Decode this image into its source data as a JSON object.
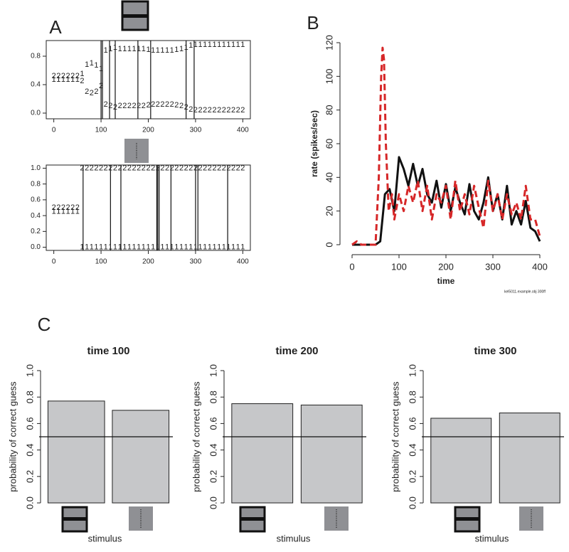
{
  "chart_data": [
    {
      "type": "scatter",
      "panel_label": "A",
      "x": [
        0,
        10,
        20,
        30,
        40,
        50,
        60,
        70,
        80,
        90,
        100,
        110,
        120,
        130,
        140,
        150,
        160,
        170,
        180,
        190,
        200,
        210,
        220,
        230,
        240,
        250,
        260,
        270,
        280,
        290,
        300,
        310,
        320,
        330,
        340,
        350,
        360,
        370,
        380,
        390,
        400
      ],
      "series": [
        {
          "name": "1",
          "values": [
            0.47,
            0.47,
            0.47,
            0.47,
            0.47,
            0.47,
            0.55,
            0.68,
            0.7,
            0.67,
            0.62,
            0.88,
            0.9,
            0.92,
            0.9,
            0.9,
            0.9,
            0.9,
            0.9,
            0.9,
            0.89,
            0.88,
            0.88,
            0.88,
            0.88,
            0.88,
            0.89,
            0.9,
            0.92,
            0.95,
            0.96,
            0.96,
            0.96,
            0.96,
            0.96,
            0.96,
            0.96,
            0.96,
            0.96,
            0.96,
            0.96
          ]
        },
        {
          "name": "2",
          "values": [
            0.52,
            0.52,
            0.52,
            0.52,
            0.52,
            0.52,
            0.45,
            0.3,
            0.28,
            0.3,
            0.38,
            0.12,
            0.1,
            0.08,
            0.1,
            0.1,
            0.1,
            0.1,
            0.1,
            0.1,
            0.11,
            0.12,
            0.12,
            0.12,
            0.12,
            0.12,
            0.11,
            0.1,
            0.08,
            0.05,
            0.04,
            0.04,
            0.04,
            0.04,
            0.04,
            0.04,
            0.04,
            0.04,
            0.04,
            0.04,
            0.04
          ]
        }
      ],
      "event_times": [
        100,
        103,
        118,
        130,
        178,
        205,
        280,
        297
      ],
      "xlim": [
        -16,
        416
      ],
      "ylim": [
        -0.08,
        1.02
      ],
      "xticks": [
        0,
        100,
        200,
        300,
        400
      ],
      "yticks": [
        {
          "value": 0,
          "label": "0.0"
        },
        {
          "value": 0.4,
          "label": "0.4"
        },
        {
          "value": 0.8,
          "label": "0.8"
        }
      ]
    },
    {
      "type": "scatter",
      "x": [
        0,
        10,
        20,
        30,
        40,
        50,
        60,
        70,
        80,
        90,
        100,
        110,
        120,
        130,
        140,
        150,
        160,
        170,
        180,
        190,
        200,
        210,
        220,
        230,
        240,
        250,
        260,
        270,
        280,
        290,
        300,
        310,
        320,
        330,
        340,
        350,
        360,
        370,
        380,
        390,
        400
      ],
      "series": [
        {
          "name": "1",
          "values": [
            0.45,
            0.45,
            0.45,
            0.45,
            0.45,
            0.45,
            0,
            0,
            0,
            0,
            0,
            0,
            0,
            0,
            0,
            0,
            0,
            0,
            0,
            0,
            0,
            0,
            0,
            0,
            0,
            0,
            0,
            0,
            0,
            0,
            0,
            0,
            0,
            0,
            0,
            0,
            0,
            0,
            0,
            0,
            0
          ]
        },
        {
          "name": "2",
          "values": [
            0.5,
            0.5,
            0.5,
            0.5,
            0.5,
            0.5,
            1,
            1,
            1,
            1,
            1,
            1,
            1,
            1,
            1,
            1,
            1,
            1,
            1,
            1,
            1,
            1,
            1,
            1,
            1,
            1,
            1,
            1,
            1,
            1,
            1,
            1,
            1,
            1,
            1,
            1,
            1,
            1,
            1,
            1,
            1
          ]
        }
      ],
      "event_times": [
        62,
        120,
        142,
        218,
        220,
        223,
        248,
        300,
        305,
        368
      ],
      "xlim": [
        -16,
        416
      ],
      "ylim": [
        -0.04,
        1.04
      ],
      "xticks": [
        0,
        100,
        200,
        300,
        400
      ],
      "yticks": [
        {
          "value": 0,
          "label": "0.0"
        },
        {
          "value": 0.2,
          "label": "0.2"
        },
        {
          "value": 0.4,
          "label": "0.4"
        },
        {
          "value": 0.6,
          "label": "0.6"
        },
        {
          "value": 0.8,
          "label": "0.8"
        },
        {
          "value": 1,
          "label": "1.0"
        }
      ]
    },
    {
      "type": "line",
      "panel_label": "B",
      "x_label": "time",
      "y_label": "rate (spikes/sec)",
      "note": "kel5011.example.obj 300ff",
      "series": [
        {
          "color": "#111111",
          "dash": false,
          "x": [
            0,
            10,
            20,
            30,
            40,
            50,
            60,
            70,
            80,
            90,
            100,
            110,
            120,
            130,
            140,
            150,
            160,
            170,
            180,
            190,
            200,
            210,
            220,
            230,
            240,
            250,
            260,
            270,
            280,
            290,
            300,
            310,
            320,
            330,
            340,
            350,
            360,
            370,
            380,
            390,
            400
          ],
          "values": [
            0,
            0,
            0,
            0,
            0,
            0,
            2,
            30,
            33,
            20,
            52,
            45,
            35,
            48,
            35,
            45,
            30,
            25,
            38,
            22,
            36,
            20,
            34,
            25,
            18,
            36,
            20,
            15,
            25,
            40,
            20,
            30,
            15,
            35,
            12,
            20,
            12,
            26,
            10,
            8,
            2
          ]
        },
        {
          "color": "#d62728",
          "dash": true,
          "x": [
            0,
            10,
            20,
            30,
            40,
            50,
            57,
            62,
            65,
            68,
            72,
            78,
            85,
            90,
            100,
            110,
            120,
            130,
            140,
            150,
            160,
            170,
            180,
            190,
            200,
            210,
            220,
            230,
            240,
            250,
            260,
            270,
            280,
            290,
            300,
            310,
            320,
            330,
            340,
            350,
            360,
            370,
            380,
            390,
            400
          ],
          "values": [
            0,
            2,
            0,
            0,
            0,
            0,
            40,
            100,
            117,
            110,
            60,
            20,
            30,
            15,
            30,
            20,
            35,
            25,
            38,
            20,
            35,
            15,
            30,
            25,
            35,
            15,
            38,
            20,
            30,
            18,
            35,
            22,
            10,
            38,
            20,
            30,
            15,
            30,
            18,
            25,
            15,
            35,
            15,
            15,
            5
          ]
        }
      ],
      "xlim": [
        0,
        400
      ],
      "ylim": [
        0,
        120
      ],
      "xticks": [
        0,
        100,
        200,
        300,
        400
      ],
      "yticks": [
        0,
        20,
        40,
        60,
        80,
        100,
        120
      ]
    },
    {
      "type": "bar",
      "panel_label": "C",
      "title": "time 100",
      "x_label": "stimulus",
      "y_label": "probability of correct guess",
      "categories": [
        null,
        null
      ],
      "values": [
        0.77,
        0.7
      ],
      "color": "#c6c7c9",
      "reference_line": 0.5,
      "ylim": [
        0,
        1
      ],
      "yticks": [
        {
          "value": 0,
          "label": "0.0"
        },
        {
          "value": 0.2,
          "label": "0.2"
        },
        {
          "value": 0.4,
          "label": "0.4"
        },
        {
          "value": 0.6,
          "label": "0.6"
        },
        {
          "value": 0.8,
          "label": "0.8"
        },
        {
          "value": 1,
          "label": "1.0"
        }
      ]
    },
    {
      "type": "bar",
      "title": "time 200",
      "x_label": "stimulus",
      "y_label": "probability of correct guess",
      "categories": [
        null,
        null
      ],
      "values": [
        0.75,
        0.74
      ],
      "color": "#c6c7c9",
      "reference_line": 0.5,
      "ylim": [
        0,
        1
      ],
      "yticks": [
        {
          "value": 0,
          "label": "0.0"
        },
        {
          "value": 0.2,
          "label": "0.2"
        },
        {
          "value": 0.4,
          "label": "0.4"
        },
        {
          "value": 0.6,
          "label": "0.6"
        },
        {
          "value": 0.8,
          "label": "0.8"
        },
        {
          "value": 1,
          "label": "1.0"
        }
      ]
    },
    {
      "type": "bar",
      "title": "time 300",
      "x_label": "stimulus",
      "y_label": "probability of correct guess",
      "categories": [
        null,
        null
      ],
      "values": [
        0.64,
        0.68
      ],
      "color": "#c6c7c9",
      "reference_line": 0.5,
      "ylim": [
        0,
        1
      ],
      "yticks": [
        {
          "value": 0,
          "label": "0.0"
        },
        {
          "value": 0.2,
          "label": "0.2"
        },
        {
          "value": 0.4,
          "label": "0.4"
        },
        {
          "value": 0.6,
          "label": "0.6"
        },
        {
          "value": 0.8,
          "label": "0.8"
        },
        {
          "value": 1,
          "label": "1.0"
        }
      ]
    }
  ]
}
